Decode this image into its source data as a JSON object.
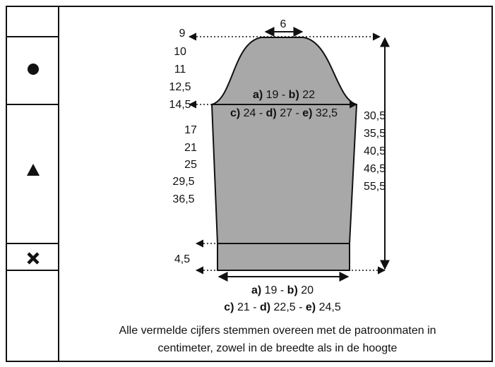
{
  "top_width": "6",
  "left_heights": [
    "9",
    "10",
    "11",
    "12,5",
    "14,5",
    "17",
    "21",
    "25",
    "29,5",
    "36,5",
    "4,5"
  ],
  "right_heights": [
    "30,5",
    "35,5",
    "40,5",
    "46,5",
    "55,5"
  ],
  "upper_width_1": [
    "a)",
    " 19 - ",
    "b)",
    " 22"
  ],
  "upper_width_2": [
    "c)",
    " 24 - ",
    "d)",
    " 27 - ",
    "e)",
    " 32,5"
  ],
  "lower_width_1": [
    "a)",
    " 19 - ",
    "b)",
    " 20"
  ],
  "lower_width_2": [
    "c)",
    " 21 - ",
    "d)",
    " 22,5 - ",
    "e)",
    " 24,5"
  ],
  "note": [
    "Alle vermelde cijfers stemmen overeen met de patroonmaten in",
    "centimeter, zowel in de breedte als in de hoogte"
  ]
}
